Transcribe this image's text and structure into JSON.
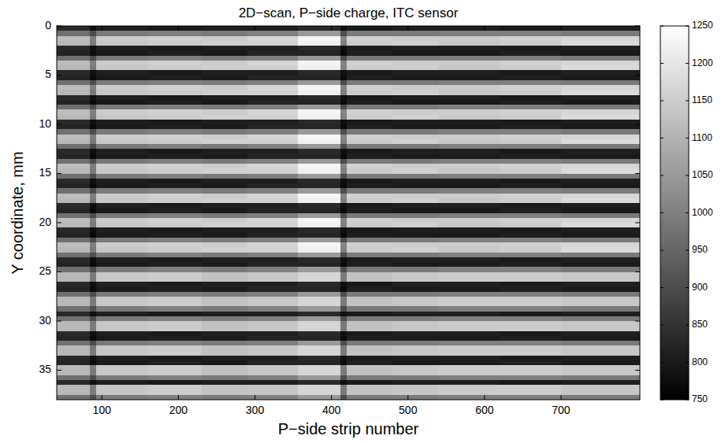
{
  "chart_data": {
    "type": "heatmap",
    "title": "2D−scan, P−side charge, ITC sensor",
    "x_label": "P−side strip number",
    "y_label": "Y coordinate, mm",
    "color": "gray",
    "xlim": [
      41,
      803
    ],
    "ylim": [
      0,
      38
    ],
    "xticks": [
      100,
      200,
      300,
      400,
      500,
      600,
      700
    ],
    "yticks": [
      0,
      5,
      10,
      15,
      20,
      25,
      30,
      35
    ],
    "color_range": [
      750,
      1250
    ],
    "color_ticks": [
      750,
      800,
      850,
      900,
      950,
      1000,
      1050,
      1100,
      1150,
      1200,
      1250
    ],
    "x_edges": [
      41,
      84,
      92,
      160,
      230,
      290,
      356,
      412,
      420,
      480,
      540,
      620,
      700,
      803
    ],
    "y_edges": [
      0,
      0.5,
      1,
      1.5,
      2,
      2.5,
      3,
      3.5,
      4,
      4.5,
      5,
      5.5,
      6,
      6.5,
      7,
      7.5,
      8,
      8.5,
      9,
      9.5,
      10,
      10.5,
      11,
      11.5,
      12,
      12.5,
      13,
      13.5,
      14,
      14.5,
      15,
      15.5,
      16,
      16.5,
      17,
      17.5,
      18,
      18.5,
      19,
      19.5,
      20,
      20.5,
      21,
      21.5,
      22,
      22.5,
      23,
      23.5,
      24,
      24.5,
      25,
      25.5,
      26,
      26.5,
      27,
      27.5,
      28,
      28.5,
      29,
      29.5,
      30,
      30.5,
      31,
      31.5,
      32,
      32.5,
      33,
      33.5,
      34,
      34.5,
      35,
      35.5,
      36,
      36.5,
      37,
      37.5,
      38
    ],
    "cells": [
      [
        830,
        780,
        810,
        800,
        810,
        810,
        830,
        780,
        800,
        810,
        810,
        800,
        810
      ],
      [
        970,
        900,
        990,
        1000,
        990,
        1000,
        1050,
        900,
        990,
        990,
        1000,
        1000,
        990
      ],
      [
        1120,
        1000,
        1150,
        1160,
        1150,
        1170,
        1230,
        1010,
        1160,
        1150,
        1150,
        1160,
        1170
      ],
      [
        1110,
        990,
        1140,
        1150,
        1160,
        1160,
        1220,
        1000,
        1150,
        1160,
        1140,
        1150,
        1180
      ],
      [
        830,
        780,
        810,
        800,
        810,
        810,
        830,
        780,
        800,
        810,
        810,
        800,
        810
      ],
      [
        820,
        770,
        800,
        810,
        800,
        820,
        820,
        770,
        810,
        800,
        800,
        810,
        800
      ],
      [
        970,
        900,
        990,
        1000,
        990,
        1000,
        1050,
        900,
        990,
        990,
        1000,
        1000,
        990
      ],
      [
        1120,
        1000,
        1150,
        1160,
        1150,
        1170,
        1230,
        1010,
        1160,
        1150,
        1150,
        1160,
        1170
      ],
      [
        1110,
        990,
        1140,
        1150,
        1160,
        1160,
        1220,
        1000,
        1150,
        1160,
        1140,
        1150,
        1180
      ],
      [
        830,
        780,
        810,
        800,
        810,
        810,
        830,
        780,
        800,
        810,
        810,
        800,
        810
      ],
      [
        820,
        770,
        800,
        810,
        800,
        820,
        820,
        770,
        810,
        800,
        800,
        810,
        800
      ],
      [
        970,
        900,
        990,
        1000,
        990,
        1000,
        1050,
        900,
        990,
        990,
        1000,
        1000,
        990
      ],
      [
        1120,
        1000,
        1150,
        1160,
        1150,
        1170,
        1230,
        1010,
        1160,
        1150,
        1150,
        1160,
        1170
      ],
      [
        1110,
        990,
        1140,
        1150,
        1160,
        1160,
        1220,
        1000,
        1150,
        1160,
        1140,
        1150,
        1180
      ],
      [
        830,
        780,
        810,
        800,
        810,
        810,
        830,
        780,
        800,
        810,
        810,
        800,
        810
      ],
      [
        820,
        770,
        800,
        810,
        800,
        820,
        820,
        770,
        810,
        800,
        800,
        810,
        800
      ],
      [
        970,
        900,
        990,
        1000,
        990,
        1000,
        1050,
        900,
        990,
        990,
        1000,
        1000,
        990
      ],
      [
        1120,
        1000,
        1150,
        1160,
        1150,
        1170,
        1230,
        1010,
        1160,
        1150,
        1150,
        1160,
        1170
      ],
      [
        1110,
        990,
        1140,
        1150,
        1160,
        1160,
        1220,
        1000,
        1150,
        1160,
        1140,
        1150,
        1180
      ],
      [
        830,
        780,
        810,
        800,
        810,
        810,
        830,
        780,
        800,
        810,
        810,
        800,
        810
      ],
      [
        820,
        770,
        800,
        810,
        800,
        820,
        820,
        770,
        810,
        800,
        800,
        810,
        800
      ],
      [
        970,
        900,
        990,
        1000,
        990,
        1000,
        1050,
        900,
        990,
        990,
        1000,
        1000,
        990
      ],
      [
        1120,
        1000,
        1150,
        1160,
        1150,
        1170,
        1230,
        1010,
        1160,
        1150,
        1150,
        1160,
        1170
      ],
      [
        1110,
        990,
        1140,
        1150,
        1160,
        1160,
        1220,
        1000,
        1150,
        1160,
        1140,
        1150,
        1180
      ],
      [
        970,
        900,
        990,
        1000,
        990,
        1000,
        1050,
        900,
        990,
        990,
        1000,
        1000,
        990
      ],
      [
        830,
        780,
        810,
        800,
        810,
        810,
        830,
        780,
        800,
        810,
        810,
        800,
        810
      ],
      [
        820,
        770,
        800,
        810,
        800,
        820,
        820,
        770,
        810,
        800,
        800,
        810,
        800
      ],
      [
        970,
        900,
        990,
        1000,
        990,
        1000,
        1050,
        900,
        990,
        990,
        1000,
        1000,
        990
      ],
      [
        1120,
        1000,
        1150,
        1160,
        1150,
        1170,
        1230,
        1010,
        1160,
        1150,
        1150,
        1160,
        1170
      ],
      [
        1110,
        990,
        1140,
        1150,
        1160,
        1160,
        1220,
        1000,
        1150,
        1160,
        1140,
        1150,
        1180
      ],
      [
        970,
        900,
        990,
        1000,
        990,
        1000,
        1050,
        900,
        990,
        990,
        1000,
        1000,
        990
      ],
      [
        830,
        780,
        810,
        800,
        810,
        810,
        830,
        780,
        800,
        810,
        810,
        800,
        810
      ],
      [
        820,
        770,
        800,
        810,
        800,
        820,
        820,
        770,
        810,
        800,
        800,
        810,
        800
      ],
      [
        970,
        900,
        990,
        1000,
        990,
        1000,
        1050,
        900,
        990,
        990,
        1000,
        1000,
        990
      ],
      [
        1120,
        1000,
        1150,
        1160,
        1150,
        1170,
        1230,
        1010,
        1160,
        1150,
        1150,
        1160,
        1170
      ],
      [
        1110,
        990,
        1140,
        1150,
        1160,
        1160,
        1220,
        1000,
        1150,
        1160,
        1140,
        1150,
        1180
      ],
      [
        830,
        780,
        810,
        800,
        810,
        810,
        830,
        780,
        800,
        810,
        810,
        800,
        810
      ],
      [
        820,
        770,
        800,
        810,
        800,
        820,
        820,
        770,
        810,
        800,
        800,
        810,
        800
      ],
      [
        970,
        900,
        990,
        1000,
        990,
        1000,
        1050,
        900,
        990,
        990,
        1000,
        1000,
        990
      ],
      [
        1120,
        1000,
        1150,
        1160,
        1150,
        1170,
        1230,
        1010,
        1160,
        1150,
        1150,
        1160,
        1170
      ],
      [
        1110,
        990,
        1140,
        1150,
        1160,
        1160,
        1220,
        1000,
        1150,
        1160,
        1140,
        1150,
        1180
      ],
      [
        830,
        780,
        810,
        800,
        810,
        810,
        830,
        780,
        800,
        810,
        810,
        800,
        810
      ],
      [
        820,
        770,
        800,
        810,
        800,
        820,
        820,
        770,
        810,
        800,
        800,
        810,
        800
      ],
      [
        970,
        900,
        990,
        1000,
        990,
        1000,
        1050,
        900,
        990,
        990,
        1000,
        1000,
        990
      ],
      [
        1120,
        1000,
        1150,
        1160,
        1150,
        1170,
        1230,
        1010,
        1160,
        1150,
        1150,
        1160,
        1170
      ],
      [
        1110,
        990,
        1140,
        1150,
        1160,
        1160,
        1220,
        1000,
        1150,
        1160,
        1140,
        1150,
        1180
      ],
      [
        970,
        900,
        990,
        1000,
        990,
        1000,
        1050,
        900,
        990,
        990,
        1000,
        1000,
        990
      ],
      [
        830,
        780,
        810,
        800,
        810,
        810,
        830,
        780,
        800,
        810,
        810,
        800,
        810
      ],
      [
        820,
        770,
        800,
        810,
        800,
        820,
        820,
        770,
        810,
        800,
        800,
        810,
        800
      ],
      [
        970,
        900,
        990,
        1000,
        990,
        1000,
        1050,
        900,
        990,
        990,
        1000,
        1000,
        990
      ],
      [
        1110,
        990,
        1140,
        1150,
        1130,
        1140,
        1170,
        990,
        1130,
        1140,
        1150,
        1150,
        1140
      ],
      [
        1110,
        990,
        1140,
        1150,
        1130,
        1140,
        1170,
        990,
        1130,
        1140,
        1150,
        1150,
        1140
      ],
      [
        830,
        780,
        810,
        800,
        810,
        810,
        830,
        780,
        800,
        810,
        810,
        800,
        810
      ],
      [
        820,
        770,
        800,
        810,
        800,
        820,
        820,
        770,
        810,
        800,
        800,
        810,
        800
      ],
      [
        970,
        900,
        990,
        1000,
        990,
        1000,
        1050,
        900,
        990,
        990,
        1000,
        1000,
        990
      ],
      [
        1110,
        990,
        1140,
        1150,
        1130,
        1140,
        1170,
        990,
        1130,
        1140,
        1150,
        1150,
        1140
      ],
      [
        1110,
        990,
        1140,
        1150,
        1130,
        1140,
        1170,
        990,
        1130,
        1140,
        1150,
        1150,
        1140
      ],
      [
        970,
        900,
        990,
        1000,
        990,
        1000,
        1050,
        900,
        990,
        990,
        1000,
        1000,
        990
      ],
      [
        830,
        780,
        810,
        800,
        810,
        810,
        830,
        780,
        800,
        810,
        810,
        800,
        810
      ],
      [
        970,
        900,
        990,
        1000,
        990,
        1000,
        1050,
        900,
        990,
        990,
        1000,
        1000,
        990
      ],
      [
        1110,
        990,
        1140,
        1150,
        1130,
        1140,
        1170,
        990,
        1130,
        1140,
        1150,
        1150,
        1140
      ],
      [
        1110,
        990,
        1140,
        1150,
        1130,
        1140,
        1170,
        990,
        1130,
        1140,
        1150,
        1150,
        1140
      ],
      [
        830,
        780,
        810,
        800,
        810,
        810,
        830,
        780,
        800,
        810,
        810,
        800,
        810
      ],
      [
        820,
        770,
        800,
        810,
        800,
        820,
        820,
        770,
        810,
        800,
        800,
        810,
        800
      ],
      [
        970,
        900,
        990,
        1000,
        990,
        1000,
        1050,
        900,
        990,
        990,
        1000,
        1000,
        990
      ],
      [
        1110,
        990,
        1140,
        1150,
        1130,
        1140,
        1170,
        990,
        1130,
        1140,
        1150,
        1150,
        1140
      ],
      [
        1110,
        990,
        1140,
        1150,
        1130,
        1140,
        1170,
        990,
        1130,
        1140,
        1150,
        1150,
        1140
      ],
      [
        830,
        780,
        810,
        800,
        810,
        810,
        830,
        780,
        800,
        810,
        810,
        800,
        810
      ],
      [
        820,
        770,
        800,
        810,
        800,
        820,
        820,
        770,
        810,
        800,
        800,
        810,
        800
      ],
      [
        1110,
        990,
        1140,
        1150,
        1130,
        1140,
        1170,
        990,
        1130,
        1140,
        1150,
        1150,
        1140
      ],
      [
        1110,
        990,
        1140,
        1150,
        1130,
        1140,
        1170,
        990,
        1130,
        1140,
        1150,
        1150,
        1140
      ],
      [
        970,
        900,
        990,
        1000,
        990,
        1000,
        1050,
        900,
        990,
        990,
        1000,
        1000,
        990
      ],
      [
        830,
        780,
        810,
        800,
        810,
        810,
        830,
        780,
        800,
        810,
        810,
        800,
        810
      ],
      [
        1110,
        990,
        1140,
        1150,
        1130,
        1140,
        1170,
        990,
        1130,
        1140,
        1150,
        1150,
        1140
      ],
      [
        1110,
        990,
        1140,
        1150,
        1130,
        1140,
        1170,
        990,
        1130,
        1140,
        1150,
        1150,
        1140
      ],
      [
        970,
        900,
        990,
        1000,
        990,
        1000,
        1050,
        900,
        990,
        990,
        1000,
        1000,
        990
      ]
    ]
  }
}
